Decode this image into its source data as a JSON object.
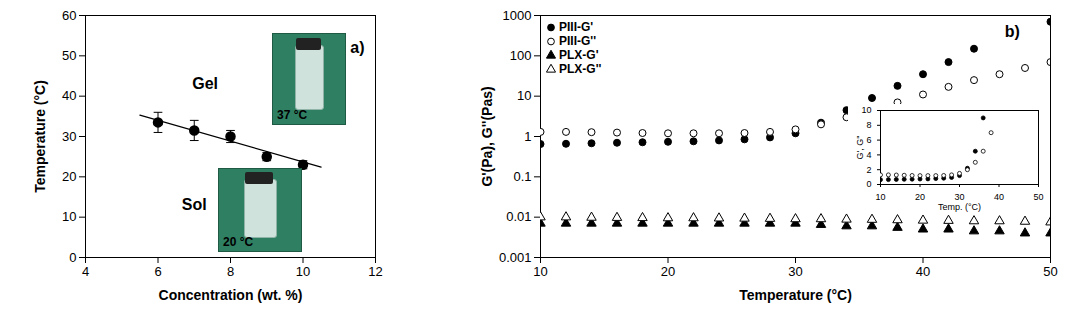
{
  "chart_data": [
    {
      "type": "scatter",
      "x_label": "Concentration (wt. %)",
      "y_label": "Temperature (°C)",
      "x": [
        6,
        7,
        8,
        9,
        10
      ],
      "values": [
        33.5,
        31.5,
        30,
        25,
        23
      ],
      "errors": [
        2.5,
        2.5,
        1.5,
        1,
        1
      ],
      "color": "#000000",
      "marker": "circle",
      "trend_line": {
        "x": [
          5.5,
          10.5
        ],
        "values": [
          35.3,
          22.4
        ]
      },
      "xlim": [
        4,
        12
      ],
      "xticks": [
        4,
        6,
        8,
        10,
        12
      ],
      "ylim": [
        0,
        60
      ],
      "yticks": [
        0,
        10,
        20,
        30,
        40,
        50,
        60
      ],
      "grid": false,
      "annotations": [
        {
          "text": "a)",
          "x": 11.5,
          "y": 52
        },
        {
          "text": "Gel",
          "x": 7.3,
          "y": 43
        },
        {
          "text": "Sol",
          "x": 7.0,
          "y": 13
        }
      ],
      "photos": [
        {
          "label": "37 °C"
        },
        {
          "label": "20 °C"
        }
      ]
    },
    {
      "type": "scatter",
      "log": "y",
      "x_label": "Temperature (°C)",
      "y_label": "G'(Pa), G''(Pas)",
      "x": [
        10,
        12,
        14,
        16,
        18,
        20,
        22,
        24,
        26,
        28,
        30,
        32,
        34,
        36,
        38,
        40,
        42,
        44,
        46,
        48,
        50
      ],
      "series": [
        {
          "name": "PIII-G'",
          "color": "#000000",
          "marker": "circle",
          "values": [
            0.65,
            0.66,
            0.68,
            0.7,
            0.72,
            0.74,
            0.76,
            0.8,
            0.85,
            0.95,
            1.2,
            2.2,
            4.5,
            9,
            18,
            35,
            70,
            150,
            null,
            null,
            700
          ]
        },
        {
          "name": "PIII-G''",
          "color": "#000000",
          "marker": "circle-open",
          "values": [
            1.3,
            1.3,
            1.28,
            1.25,
            1.22,
            1.2,
            1.2,
            1.2,
            1.22,
            1.3,
            1.5,
            2,
            3,
            4.5,
            7,
            11,
            17,
            25,
            35,
            50,
            70
          ]
        },
        {
          "name": "PLX-G'",
          "color": "#000000",
          "marker": "triangle",
          "values": [
            0.007,
            0.007,
            0.007,
            0.007,
            0.007,
            0.007,
            0.007,
            0.007,
            0.007,
            0.007,
            0.007,
            0.0065,
            0.006,
            0.006,
            0.0055,
            0.005,
            0.005,
            0.0045,
            0.0045,
            0.004,
            0.004
          ]
        },
        {
          "name": "PLX-G''",
          "color": "#000000",
          "marker": "triangle-open",
          "values": [
            0.01,
            0.01,
            0.0098,
            0.0097,
            0.0096,
            0.0095,
            0.0095,
            0.0094,
            0.0093,
            0.0092,
            0.009,
            0.009,
            0.0088,
            0.0087,
            0.0085,
            0.0083,
            0.0082,
            0.008,
            0.008,
            0.0078,
            0.0075
          ]
        }
      ],
      "xlim": [
        10,
        50
      ],
      "xticks": [
        10,
        20,
        30,
        40,
        50
      ],
      "ylim": [
        0.001,
        1000
      ],
      "yticks": [
        0.001,
        0.01,
        0.1,
        1,
        10,
        100,
        1000
      ],
      "grid": false,
      "legend": "top-left",
      "annotations": [
        {
          "text": "b)",
          "x": 47,
          "y": 400
        }
      ],
      "inset": {
        "x_label": "Temp. (°C)",
        "y_label": "G', G''",
        "xlim": [
          10,
          50
        ],
        "xticks": [
          10,
          20,
          30,
          40,
          50
        ],
        "ylim": [
          0,
          10
        ],
        "yticks": [
          0,
          2,
          4,
          6,
          8,
          10
        ],
        "series": [
          "PIII-G'",
          "PIII-G''"
        ]
      }
    }
  ]
}
